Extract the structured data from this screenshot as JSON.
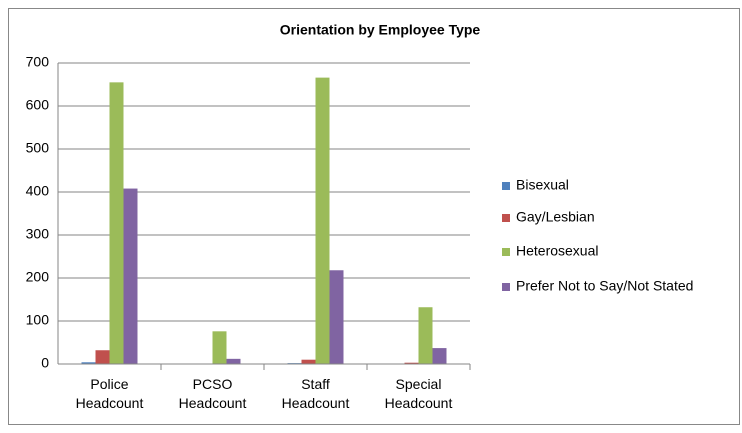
{
  "chart_data": {
    "type": "bar",
    "title": "Orientation by Employee Type",
    "categories": [
      "Police Headcount",
      "PCSO Headcount",
      "Staff Headcount",
      "Special Headcount"
    ],
    "series": [
      {
        "name": "Bisexual",
        "color": "#4f81bd",
        "values": [
          4,
          1,
          2,
          1
        ]
      },
      {
        "name": "Gay/Lesbian",
        "color": "#c0504d",
        "values": [
          32,
          1,
          10,
          3
        ]
      },
      {
        "name": "Heterosexual",
        "color": "#9bbb59",
        "values": [
          655,
          76,
          666,
          132
        ]
      },
      {
        "name": "Prefer Not to Say/Not Stated",
        "color": "#8064a2",
        "values": [
          408,
          12,
          218,
          37
        ]
      }
    ],
    "ylim": [
      0,
      700
    ],
    "yticks": [
      0,
      100,
      200,
      300,
      400,
      500,
      600,
      700
    ],
    "grid": true,
    "legend": "right"
  }
}
